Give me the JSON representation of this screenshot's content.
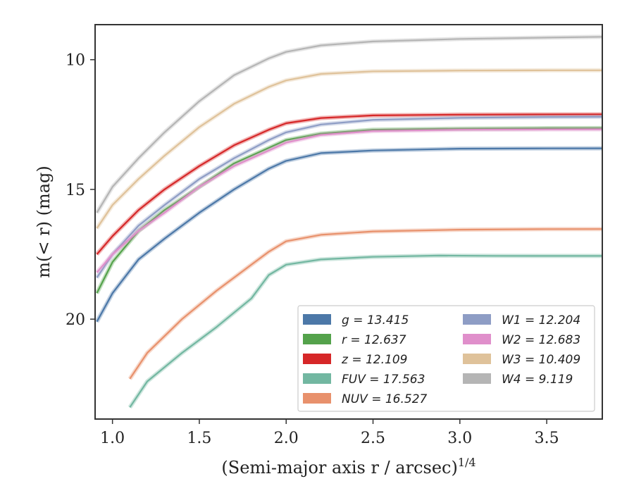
{
  "chart_data": {
    "type": "line",
    "title": "",
    "xlabel": "(Semi-major axis r / arcsec)",
    "xlabel_superscript": "1/4",
    "ylabel": "m(< r) (mag)",
    "xlim": [
      0.9,
      3.82
    ],
    "ylim": [
      23.85,
      8.65
    ],
    "y_inverted": true,
    "grid": false,
    "legend_placement": "lower-right",
    "xticks": [
      "1.0",
      "1.5",
      "2.0",
      "2.5",
      "3.0",
      "3.5"
    ],
    "yticks": [
      "10",
      "15",
      "20"
    ],
    "series": [
      {
        "name": "g = 13.415",
        "color": "#4c78a8",
        "x": [
          0.91,
          1.0,
          1.15,
          1.3,
          1.5,
          1.7,
          1.9,
          2.0,
          2.2,
          2.5,
          3.0,
          3.5,
          3.82
        ],
        "y": [
          20.1,
          19.0,
          17.7,
          16.9,
          15.9,
          15.0,
          14.2,
          13.9,
          13.6,
          13.5,
          13.43,
          13.42,
          13.415
        ]
      },
      {
        "name": "r = 12.637",
        "color": "#54a24b",
        "x": [
          0.91,
          1.0,
          1.15,
          1.3,
          1.5,
          1.7,
          1.9,
          2.0,
          2.2,
          2.5,
          3.0,
          3.5,
          3.82
        ],
        "y": [
          19.0,
          17.8,
          16.6,
          15.8,
          14.9,
          14.0,
          13.4,
          13.1,
          12.85,
          12.7,
          12.66,
          12.64,
          12.637
        ]
      },
      {
        "name": "z = 12.109",
        "color": "#d62728",
        "x": [
          0.91,
          1.0,
          1.15,
          1.3,
          1.5,
          1.7,
          1.9,
          2.0,
          2.2,
          2.5,
          3.0,
          3.5,
          3.82
        ],
        "y": [
          17.5,
          16.8,
          15.8,
          15.0,
          14.1,
          13.3,
          12.7,
          12.45,
          12.25,
          12.15,
          12.12,
          12.11,
          12.109
        ]
      },
      {
        "name": "FUV = 17.563",
        "color": "#72b7a1",
        "x": [
          1.1,
          1.2,
          1.4,
          1.6,
          1.8,
          1.9,
          2.0,
          2.2,
          2.5,
          2.88,
          3.2,
          3.82
        ],
        "y": [
          23.4,
          22.4,
          21.3,
          20.3,
          19.2,
          18.3,
          17.9,
          17.7,
          17.6,
          17.55,
          17.56,
          17.563
        ]
      },
      {
        "name": "NUV = 16.527",
        "color": "#e8916c",
        "x": [
          1.1,
          1.2,
          1.4,
          1.6,
          1.8,
          1.9,
          2.0,
          2.2,
          2.5,
          3.0,
          3.5,
          3.82
        ],
        "y": [
          22.3,
          21.3,
          20.0,
          18.9,
          17.9,
          17.4,
          17.0,
          16.75,
          16.62,
          16.55,
          16.53,
          16.527
        ]
      },
      {
        "name": "W1 = 12.204",
        "color": "#8e9dc5",
        "x": [
          0.91,
          1.0,
          1.15,
          1.3,
          1.5,
          1.7,
          1.9,
          2.0,
          2.2,
          2.5,
          3.0,
          3.5,
          3.82
        ],
        "y": [
          18.4,
          17.5,
          16.4,
          15.6,
          14.6,
          13.8,
          13.1,
          12.8,
          12.5,
          12.32,
          12.24,
          12.21,
          12.204
        ]
      },
      {
        "name": "W2 = 12.683",
        "color": "#e08fcb",
        "x": [
          0.91,
          1.0,
          1.15,
          1.3,
          1.5,
          1.7,
          1.9,
          2.0,
          2.2,
          2.5,
          3.0,
          3.5,
          3.82
        ],
        "y": [
          18.2,
          17.5,
          16.6,
          15.9,
          14.9,
          14.1,
          13.5,
          13.2,
          12.9,
          12.75,
          12.7,
          12.69,
          12.683
        ]
      },
      {
        "name": "W3 = 10.409",
        "color": "#dfc29a",
        "x": [
          0.91,
          1.0,
          1.15,
          1.3,
          1.5,
          1.7,
          1.9,
          2.0,
          2.2,
          2.5,
          3.0,
          3.5,
          3.82
        ],
        "y": [
          16.5,
          15.6,
          14.6,
          13.7,
          12.6,
          11.7,
          11.05,
          10.8,
          10.55,
          10.45,
          10.42,
          10.41,
          10.409
        ]
      },
      {
        "name": "W4 = 9.119",
        "color": "#b5b5b5",
        "x": [
          0.91,
          1.0,
          1.15,
          1.3,
          1.5,
          1.7,
          1.9,
          2.0,
          2.2,
          2.5,
          3.0,
          3.5,
          3.82
        ],
        "y": [
          15.9,
          14.9,
          13.8,
          12.8,
          11.6,
          10.6,
          9.95,
          9.7,
          9.45,
          9.3,
          9.2,
          9.15,
          9.119
        ]
      }
    ]
  }
}
